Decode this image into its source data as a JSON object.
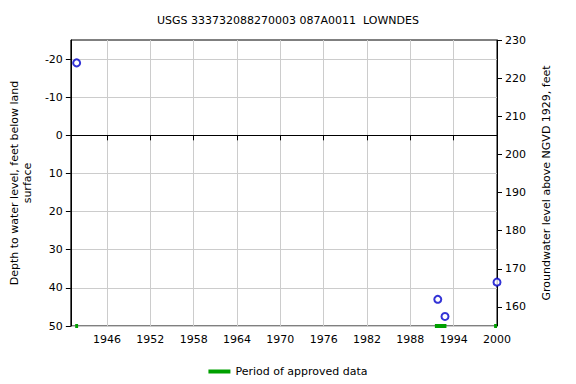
{
  "chart_data": {
    "type": "scatter",
    "title": "USGS 333732088270003 087A0011  LOWNDES",
    "y_label": "Depth to water level, feet below land\nsurface",
    "y2_label": "Groundwater level above NGVD 1929, feet",
    "series": [
      {
        "color": "#0000cc",
        "marker": "circle",
        "x": [
          1941.8,
          1991.8,
          1992.8,
          2000.0
        ],
        "values": [
          -19,
          43,
          47.5,
          38.5
        ]
      }
    ],
    "approved_data": {
      "name": "Period of approved data",
      "color": "#00a000",
      "periods": [
        [
          1941.6,
          1942.0
        ],
        [
          1991.4,
          1993.0
        ],
        [
          1999.6,
          2000.0
        ]
      ]
    },
    "xlim": [
      1941,
      2000
    ],
    "xticks": [
      1946,
      1952,
      1958,
      1964,
      1970,
      1976,
      1982,
      1988,
      1994,
      2000
    ],
    "ylim": [
      -25,
      50
    ],
    "yticks": [
      -20,
      -10,
      0,
      10,
      20,
      30,
      40,
      50
    ],
    "y2lim": [
      155,
      230
    ],
    "y2ticks": [
      160,
      170,
      180,
      190,
      200,
      210,
      220,
      230
    ],
    "grid": true,
    "legend": "bottom"
  }
}
